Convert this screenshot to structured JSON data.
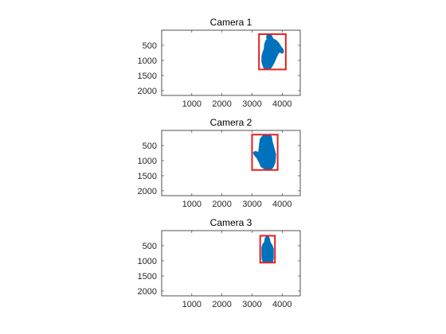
{
  "chart_data": [
    {
      "type": "scatter",
      "title": "Camera 1",
      "xlabel": "",
      "ylabel": "",
      "xlim": [
        0,
        4600
      ],
      "ylim": [
        0,
        2160
      ],
      "y_reversed": true,
      "x_ticks": [
        1000,
        2000,
        3000,
        4000
      ],
      "y_ticks": [
        500,
        1000,
        1500,
        2000
      ],
      "grid": false,
      "colors": {
        "region": "#0072bd",
        "box": "#e51f1f"
      },
      "region": {
        "name": "",
        "outline_x": [
          3400,
          3370,
          3330,
          3330,
          3370,
          3410,
          3420,
          3450,
          3480,
          3500,
          3490,
          3510,
          3550,
          3600,
          3640,
          3660,
          3700,
          3780,
          3880,
          3960,
          4020,
          4040,
          4000,
          3960,
          3900,
          3860,
          3800,
          3760,
          3700,
          3640,
          3560,
          3480,
          3430
        ],
        "outline_y": [
          1250,
          1180,
          1060,
          860,
          720,
          620,
          480,
          380,
          330,
          310,
          200,
          150,
          130,
          140,
          170,
          220,
          300,
          330,
          430,
          560,
          630,
          720,
          760,
          740,
          720,
          780,
          900,
          1000,
          1120,
          1230,
          1290,
          1290,
          1280
        ]
      },
      "bounding_box": {
        "x_min": 3230,
        "x_max": 4120,
        "y_min": 130,
        "y_max": 1300
      }
    },
    {
      "type": "scatter",
      "title": "Camera 2",
      "xlabel": "",
      "ylabel": "",
      "xlim": [
        0,
        4600
      ],
      "ylim": [
        0,
        2160
      ],
      "y_reversed": true,
      "x_ticks": [
        1000,
        2000,
        3000,
        4000
      ],
      "y_ticks": [
        500,
        1000,
        1500,
        2000
      ],
      "grid": false,
      "colors": {
        "region": "#0072bd",
        "box": "#e51f1f"
      },
      "region": {
        "name": "",
        "outline_x": [
          3450,
          3300,
          3260,
          3180,
          3080,
          3050,
          3100,
          3180,
          3220,
          3240,
          3260,
          3280,
          3340,
          3400,
          3500,
          3600,
          3640,
          3660,
          3700,
          3780,
          3760,
          3700,
          3640,
          3560
        ],
        "outline_y": [
          1290,
          1190,
          1090,
          930,
          810,
          740,
          700,
          720,
          760,
          560,
          400,
          280,
          210,
          150,
          140,
          150,
          210,
          350,
          500,
          800,
          1050,
          1200,
          1270,
          1290
        ]
      },
      "bounding_box": {
        "x_min": 3000,
        "x_max": 3850,
        "y_min": 140,
        "y_max": 1310
      }
    },
    {
      "type": "scatter",
      "title": "Camera 3",
      "xlabel": "",
      "ylabel": "",
      "xlim": [
        0,
        4600
      ],
      "ylim": [
        0,
        2160
      ],
      "y_reversed": true,
      "x_ticks": [
        1000,
        2000,
        3000,
        4000
      ],
      "y_ticks": [
        500,
        1000,
        1500,
        2000
      ],
      "grid": false,
      "colors": {
        "region": "#0072bd",
        "box": "#e51f1f"
      },
      "region": {
        "name": "",
        "outline_x": [
          3380,
          3340,
          3330,
          3330,
          3360,
          3420,
          3440,
          3480,
          3540,
          3570,
          3600,
          3660,
          3700,
          3700,
          3680,
          3600
        ],
        "outline_y": [
          1040,
          960,
          800,
          560,
          460,
          380,
          260,
          200,
          200,
          260,
          400,
          480,
          600,
          900,
          1020,
          1050
        ]
      },
      "bounding_box": {
        "x_min": 3270,
        "x_max": 3760,
        "y_min": 170,
        "y_max": 1060
      }
    }
  ]
}
